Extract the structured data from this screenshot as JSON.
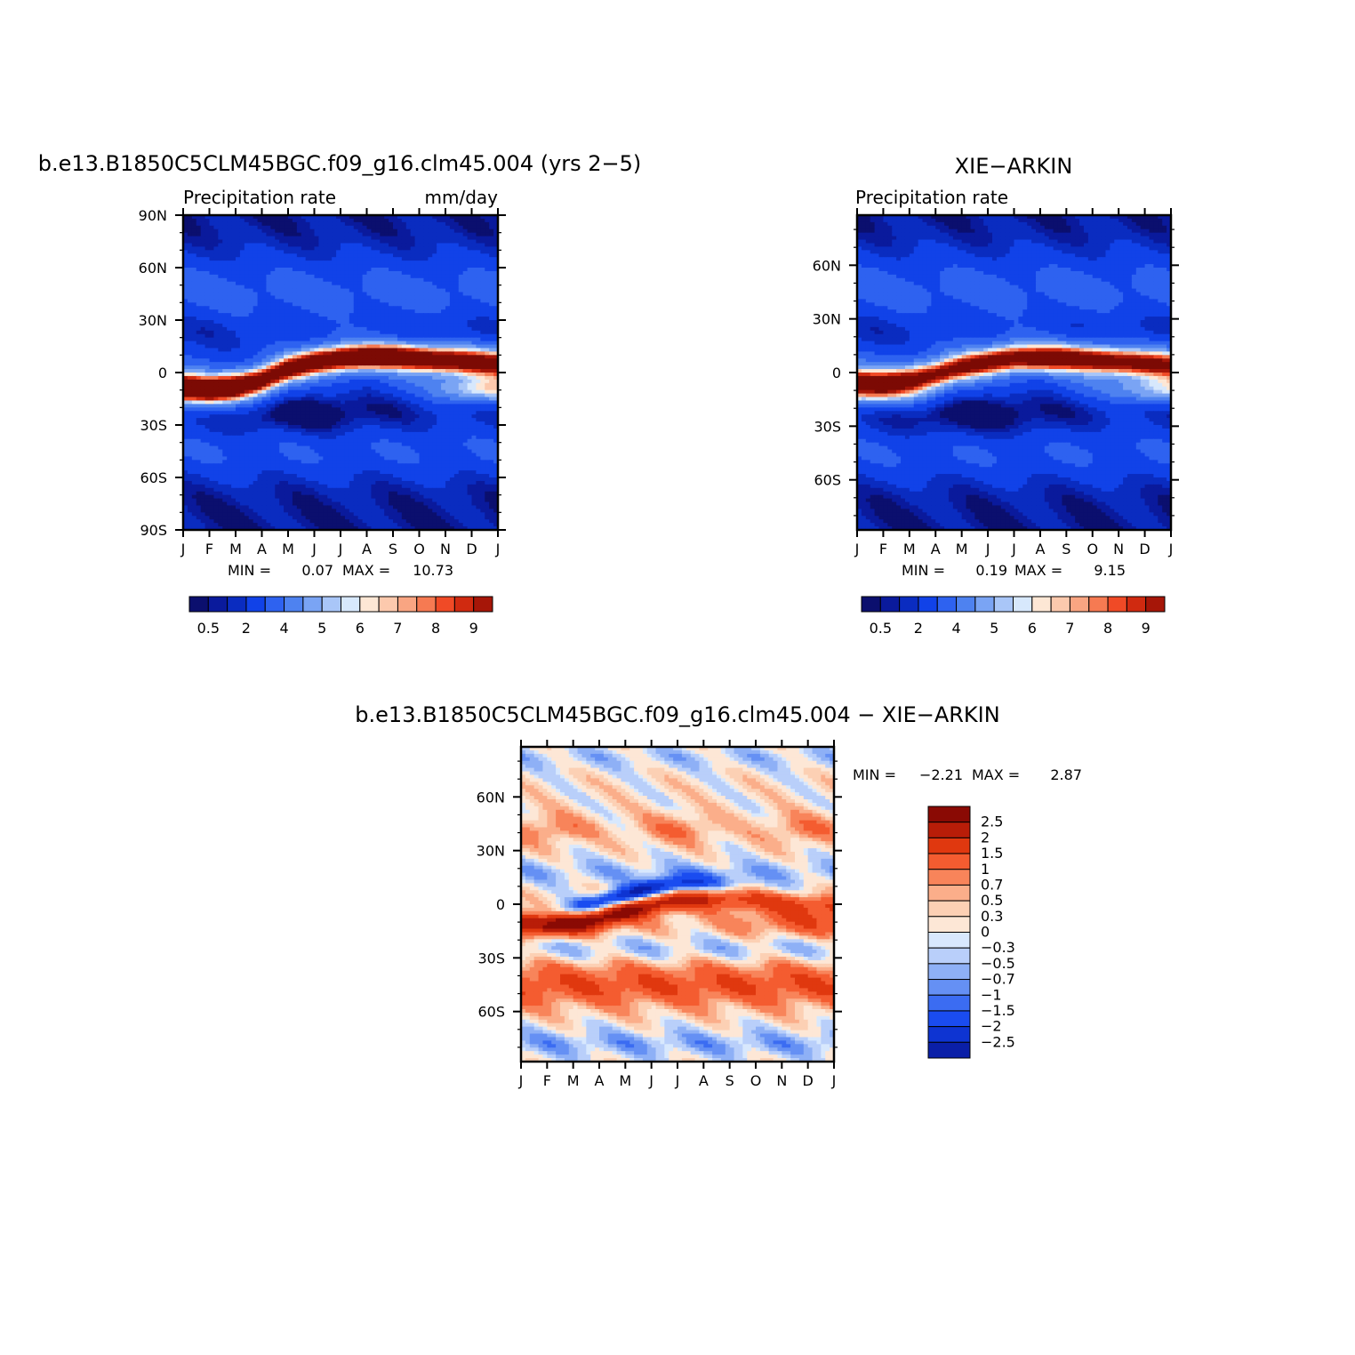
{
  "chart_data": [
    {
      "type": "heatmap",
      "title": "b.e13.B1850C5CLM45BGC.f09_g16.clm45.004 (yrs 2−5)",
      "subtitle_left": "Precipitation rate",
      "subtitle_right": "mm/day",
      "x_labels": [
        "J",
        "F",
        "M",
        "A",
        "M",
        "J",
        "J",
        "A",
        "S",
        "O",
        "N",
        "D",
        "J"
      ],
      "y_ticks": [
        {
          "lat": 90,
          "label": "90N"
        },
        {
          "lat": 60,
          "label": "60N"
        },
        {
          "lat": 30,
          "label": "30N"
        },
        {
          "lat": 0,
          "label": "0"
        },
        {
          "lat": -30,
          "label": "30S"
        },
        {
          "lat": -60,
          "label": "60S"
        },
        {
          "lat": -90,
          "label": "90S"
        }
      ],
      "ylim": [
        -90,
        90
      ],
      "min_label": "MIN =",
      "min_value": "0.07",
      "max_label": "MAX =",
      "max_value": "10.73",
      "colorbar_labels": [
        "0.5",
        "2",
        "4",
        "5",
        "6",
        "7",
        "8",
        "9"
      ],
      "colorbar_levels": 16,
      "palette": "precip",
      "itcz": {
        "lat_by_month": [
          -8,
          -10,
          -8,
          -4,
          2,
          6,
          8,
          9,
          9,
          8,
          7,
          6,
          5
        ],
        "peak": 10.7,
        "south_lobe": [
          1.0,
          0.8,
          0.6,
          0.3,
          0.1,
          0.0,
          0.0,
          0.0,
          0.1,
          0.2,
          0.5,
          0.9,
          1.0
        ]
      }
    },
    {
      "type": "heatmap",
      "title": "XIE−ARKIN",
      "subtitle_left": "Precipitation rate",
      "subtitle_right": "",
      "x_labels": [
        "J",
        "F",
        "M",
        "A",
        "M",
        "J",
        "J",
        "A",
        "S",
        "O",
        "N",
        "D",
        "J"
      ],
      "y_ticks": [
        {
          "lat": 60,
          "label": "60N"
        },
        {
          "lat": 30,
          "label": "30N"
        },
        {
          "lat": 0,
          "label": "0"
        },
        {
          "lat": -30,
          "label": "30S"
        },
        {
          "lat": -60,
          "label": "60S"
        }
      ],
      "ylim": [
        -88,
        88
      ],
      "min_label": "MIN =",
      "min_value": "0.19",
      "max_label": "MAX =",
      "max_value": "9.15",
      "colorbar_labels": [
        "0.5",
        "2",
        "4",
        "5",
        "6",
        "7",
        "8",
        "9"
      ],
      "colorbar_levels": 16,
      "palette": "precip",
      "itcz": {
        "lat_by_month": [
          -5,
          -6,
          -4,
          -1,
          3,
          6,
          8,
          8,
          8,
          7,
          6,
          5,
          4
        ],
        "peak": 9.1,
        "south_lobe": [
          0.8,
          0.7,
          0.5,
          0.2,
          0.1,
          0.0,
          0.0,
          0.0,
          0.1,
          0.2,
          0.4,
          0.7,
          0.8
        ]
      }
    },
    {
      "type": "heatmap",
      "title": "b.e13.B1850C5CLM45BGC.f09_g16.clm45.004 − XIE−ARKIN",
      "x_labels": [
        "J",
        "F",
        "M",
        "A",
        "M",
        "J",
        "J",
        "A",
        "S",
        "O",
        "N",
        "D",
        "J"
      ],
      "y_ticks": [
        {
          "lat": 60,
          "label": "60N"
        },
        {
          "lat": 30,
          "label": "30N"
        },
        {
          "lat": 0,
          "label": "0"
        },
        {
          "lat": -30,
          "label": "30S"
        },
        {
          "lat": -60,
          "label": "60S"
        }
      ],
      "ylim": [
        -88,
        88
      ],
      "min_label": "MIN =",
      "min_value": "−2.21",
      "max_label": "MAX =",
      "max_value": "2.87",
      "colorbar_labels": [
        "2.5",
        "2",
        "1.5",
        "1",
        "0.7",
        "0.5",
        "0.3",
        "0",
        "−0.3",
        "−0.5",
        "−0.7",
        "−1",
        "−1.5",
        "−2",
        "−2.5"
      ],
      "colorbar_levels": 16,
      "palette": "diff"
    }
  ]
}
